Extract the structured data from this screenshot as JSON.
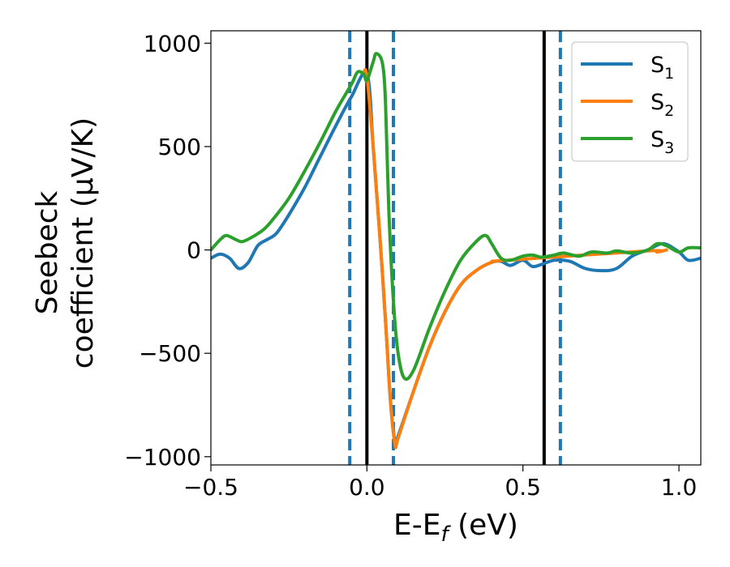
{
  "chart_data": {
    "type": "line",
    "xlabel": "E-E",
    "xlabel_sub": "f",
    "xlabel_unit": " (eV)",
    "ylabel_line1": "Seebeck",
    "ylabel_line2": "coefficient  (μV/K)",
    "xlim": [
      -0.5,
      1.07
    ],
    "ylim": [
      -1040,
      1060
    ],
    "xticks": [
      -0.5,
      0.0,
      0.5,
      1.0
    ],
    "xtick_labels": [
      "−0.5",
      "0.0",
      "0.5",
      "1.0"
    ],
    "yticks": [
      -1000,
      -500,
      0,
      500,
      1000
    ],
    "ytick_labels": [
      "−1000",
      "−500",
      "0",
      "500",
      "1000"
    ],
    "grid": false,
    "legend_position": "top-right",
    "vlines": [
      {
        "x": -0.055,
        "style": "dashed",
        "color": "#1f77b4"
      },
      {
        "x": 0.0,
        "style": "solid",
        "color": "#000000"
      },
      {
        "x": 0.085,
        "style": "dashed",
        "color": "#1f77b4"
      },
      {
        "x": 0.568,
        "style": "solid",
        "color": "#000000"
      },
      {
        "x": 0.62,
        "style": "dashed",
        "color": "#1f77b4"
      }
    ],
    "series": [
      {
        "name": "S",
        "sub": "1",
        "color": "#1f77b4",
        "points": [
          [
            -0.5,
            -40
          ],
          [
            -0.47,
            -20
          ],
          [
            -0.44,
            -40
          ],
          [
            -0.41,
            -90
          ],
          [
            -0.38,
            -60
          ],
          [
            -0.35,
            20
          ],
          [
            -0.32,
            50
          ],
          [
            -0.29,
            80
          ],
          [
            -0.25,
            170
          ],
          [
            -0.2,
            300
          ],
          [
            -0.15,
            450
          ],
          [
            -0.1,
            600
          ],
          [
            -0.05,
            740
          ],
          [
            0.0,
            850
          ],
          [
            0.02,
            500
          ],
          [
            0.04,
            100
          ],
          [
            0.06,
            -350
          ],
          [
            0.075,
            -720
          ],
          [
            0.09,
            -930
          ],
          [
            0.1,
            -900
          ],
          [
            0.15,
            -680
          ],
          [
            0.2,
            -470
          ],
          [
            0.25,
            -300
          ],
          [
            0.3,
            -170
          ],
          [
            0.35,
            -100
          ],
          [
            0.4,
            -60
          ],
          [
            0.43,
            -55
          ],
          [
            0.46,
            -75
          ],
          [
            0.5,
            -50
          ],
          [
            0.53,
            -80
          ],
          [
            0.56,
            -70
          ],
          [
            0.6,
            -50
          ],
          [
            0.65,
            -55
          ],
          [
            0.7,
            -90
          ],
          [
            0.75,
            -100
          ],
          [
            0.8,
            -90
          ],
          [
            0.85,
            -30
          ],
          [
            0.9,
            0
          ],
          [
            0.95,
            30
          ],
          [
            1.0,
            -10
          ],
          [
            1.03,
            -50
          ],
          [
            1.07,
            -40
          ]
        ]
      },
      {
        "name": "S",
        "sub": "2",
        "color": "#ff7f0e",
        "points": [
          [
            -0.01,
            860
          ],
          [
            0.0,
            840
          ],
          [
            0.02,
            500
          ],
          [
            0.04,
            100
          ],
          [
            0.06,
            -350
          ],
          [
            0.075,
            -720
          ],
          [
            0.09,
            -940
          ],
          [
            0.1,
            -910
          ],
          [
            0.15,
            -680
          ],
          [
            0.2,
            -470
          ],
          [
            0.25,
            -300
          ],
          [
            0.3,
            -170
          ],
          [
            0.35,
            -100
          ],
          [
            0.4,
            -60
          ],
          [
            0.45,
            -50
          ],
          [
            0.9,
            -5
          ],
          [
            0.93,
            -10
          ],
          [
            0.96,
            0
          ]
        ]
      },
      {
        "name": "S",
        "sub": "3",
        "color": "#2ca02c",
        "points": [
          [
            -0.5,
            0
          ],
          [
            -0.47,
            50
          ],
          [
            -0.45,
            70
          ],
          [
            -0.42,
            50
          ],
          [
            -0.4,
            40
          ],
          [
            -0.37,
            60
          ],
          [
            -0.33,
            100
          ],
          [
            -0.3,
            150
          ],
          [
            -0.25,
            250
          ],
          [
            -0.2,
            380
          ],
          [
            -0.15,
            520
          ],
          [
            -0.1,
            670
          ],
          [
            -0.05,
            800
          ],
          [
            -0.03,
            860
          ],
          [
            -0.01,
            850
          ],
          [
            0.0,
            820
          ],
          [
            0.02,
            910
          ],
          [
            0.03,
            950
          ],
          [
            0.05,
            900
          ],
          [
            0.06,
            700
          ],
          [
            0.07,
            200
          ],
          [
            0.085,
            -250
          ],
          [
            0.1,
            -500
          ],
          [
            0.12,
            -620
          ],
          [
            0.15,
            -580
          ],
          [
            0.2,
            -380
          ],
          [
            0.25,
            -200
          ],
          [
            0.3,
            -50
          ],
          [
            0.35,
            40
          ],
          [
            0.38,
            70
          ],
          [
            0.4,
            30
          ],
          [
            0.43,
            -40
          ],
          [
            0.46,
            -50
          ],
          [
            0.5,
            -30
          ],
          [
            0.53,
            -25
          ],
          [
            0.56,
            -35
          ],
          [
            0.6,
            -25
          ],
          [
            0.63,
            -15
          ],
          [
            0.68,
            -30
          ],
          [
            0.72,
            -10
          ],
          [
            0.77,
            -15
          ],
          [
            0.8,
            -5
          ],
          [
            0.85,
            -15
          ],
          [
            0.9,
            0
          ],
          [
            0.93,
            30
          ],
          [
            0.96,
            20
          ],
          [
            1.0,
            -10
          ],
          [
            1.03,
            10
          ],
          [
            1.07,
            10
          ]
        ]
      }
    ]
  }
}
